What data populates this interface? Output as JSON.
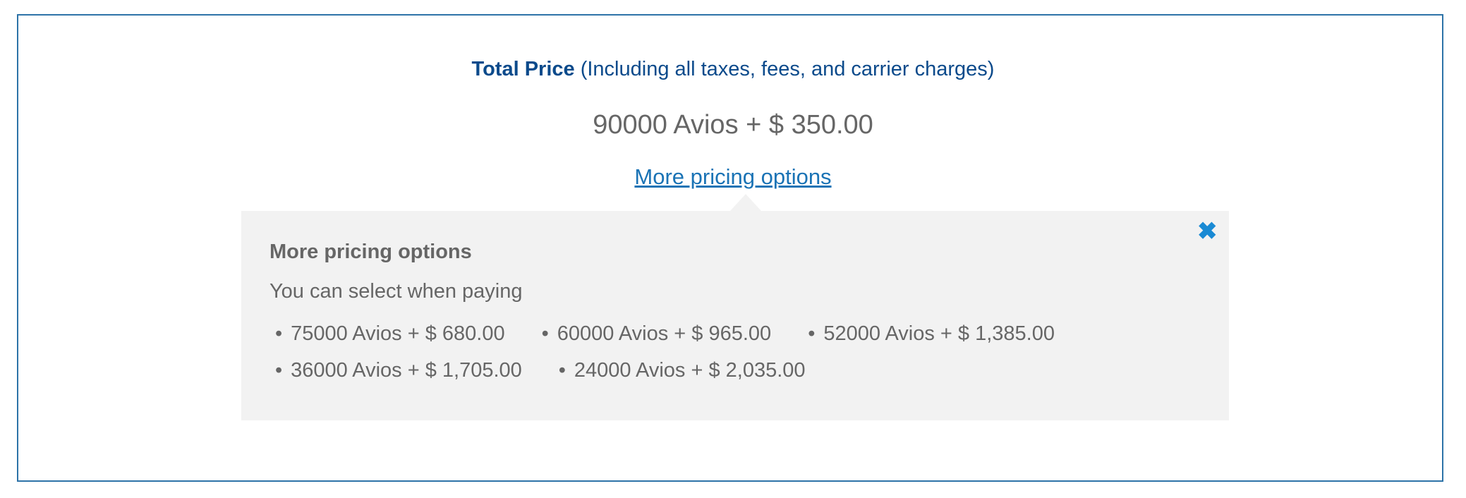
{
  "total_price": {
    "label": "Total Price",
    "note": "(Including all taxes, fees, and carrier charges)",
    "value": "90000 Avios + $ 350.00"
  },
  "more_link": "More pricing options",
  "popup": {
    "close_icon": "close-x-icon",
    "heading": "More pricing options",
    "subtitle": "You can select when paying",
    "options": [
      "75000 Avios + $ 680.00",
      "60000 Avios + $ 965.00",
      "52000 Avios + $ 1,385.00",
      "36000 Avios + $ 1,705.00",
      "24000 Avios + $ 2,035.00"
    ]
  },
  "colors": {
    "accent": "#1a73b5",
    "title": "#0b4a8b",
    "close": "#1a8ad4",
    "popup_bg": "#f2f2f2"
  }
}
